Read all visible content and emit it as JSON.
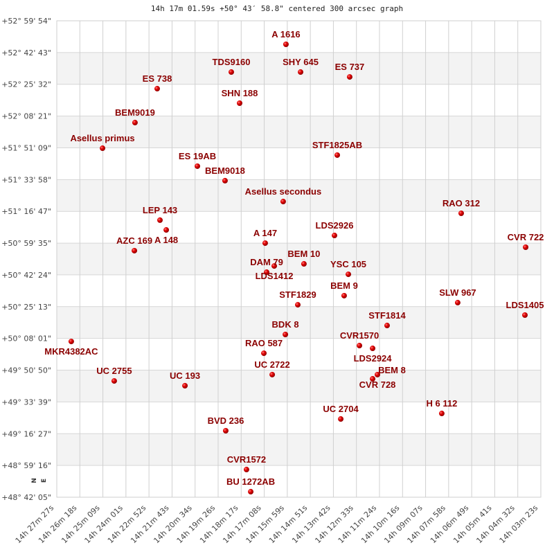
{
  "title": "14h 17m 01.59s +50° 43′ 58.8\" centered 300 arcsec graph",
  "chart_data": {
    "type": "scatter",
    "title": "14h 17m 01.59s +50° 43′ 58.8\" centered 300 arcsec graph",
    "xlabel": "",
    "ylabel": "",
    "x_unit": "RA (hours, decreasing to the right)",
    "xlim": [
      14.4575,
      14.0564
    ],
    "ylim": [
      48.7014,
      52.9983
    ],
    "x_ticks": [
      "14h 27m 27s",
      "14h 26m 18s",
      "14h 25m 09s",
      "14h 24m 01s",
      "14h 22m 52s",
      "14h 21m 43s",
      "14h 20m 34s",
      "14h 19m 26s",
      "14h 18m 17s",
      "14h 17m 08s",
      "14h 15m 59s",
      "14h 14m 51s",
      "14h 13m 42s",
      "14h 12m 33s",
      "14h 11m 24s",
      "14h 10m 16s",
      "14h 09m 07s",
      "14h 07m 58s",
      "14h 06m 49s",
      "14h 05m 41s",
      "14h 04m 32s",
      "14h 03m 23s"
    ],
    "y_ticks": [
      "+52° 59' 54\"",
      "+52° 42' 43\"",
      "+52° 25' 32\"",
      "+52° 08' 21\"",
      "+51° 51' 09\"",
      "+51° 33' 58\"",
      "+51° 16' 47\"",
      "+50° 59' 35\"",
      "+50° 42' 24\"",
      "+50° 25' 13\"",
      "+50° 08' 01\"",
      "+49° 50' 50\"",
      "+49° 33' 39\"",
      "+49° 16' 27\"",
      "+48° 59' 16\"",
      "+48° 42' 05\""
    ],
    "grid": true,
    "alternating_bands": true,
    "point_color": "#dd0000",
    "label_color": "#8b0000",
    "compass": {
      "north": "N",
      "east": "E"
    },
    "points": [
      {
        "name": "A  1616",
        "ra": 14.2676,
        "dec": 52.786
      },
      {
        "name": "TDS9160",
        "ra": 14.3129,
        "dec": 52.536
      },
      {
        "name": "SHY 645",
        "ra": 14.2555,
        "dec": 52.536
      },
      {
        "name": "ES  737",
        "ra": 14.2148,
        "dec": 52.492
      },
      {
        "name": "ES  738",
        "ra": 14.3743,
        "dec": 52.386
      },
      {
        "name": "SHN 188",
        "ra": 14.306,
        "dec": 52.255
      },
      {
        "name": "BEM9019",
        "ra": 14.3927,
        "dec": 52.08
      },
      {
        "name": "Asellus primus",
        "ra": 14.4196,
        "dec": 51.849
      },
      {
        "name": "STF1825AB",
        "ra": 14.2251,
        "dec": 51.787
      },
      {
        "name": "ES   19AB",
        "ra": 14.341,
        "dec": 51.687
      },
      {
        "name": "BEM9018",
        "ra": 14.3181,
        "dec": 51.556
      },
      {
        "name": "Asellus secondus",
        "ra": 14.2699,
        "dec": 51.368
      },
      {
        "name": "RAO 312",
        "ra": 14.1224,
        "dec": 51.262
      },
      {
        "name": "LEP 143",
        "ra": 14.372,
        "dec": 51.2
      },
      {
        "name": "A   148",
        "ra": 14.3668,
        "dec": 51.112
      },
      {
        "name": "LDS2926",
        "ra": 14.2274,
        "dec": 51.062
      },
      {
        "name": "A   147",
        "ra": 14.2848,
        "dec": 50.993
      },
      {
        "name": "CVR 722",
        "ra": 14.069,
        "dec": 50.956
      },
      {
        "name": "AZC 169",
        "ra": 14.3932,
        "dec": 50.925
      },
      {
        "name": "BEM  10",
        "ra": 14.2527,
        "dec": 50.806
      },
      {
        "name": "LDS1412",
        "ra": 14.2773,
        "dec": 50.787
      },
      {
        "name": "DAM  79",
        "ra": 14.2836,
        "dec": 50.731
      },
      {
        "name": "YSC 105",
        "ra": 14.2159,
        "dec": 50.712
      },
      {
        "name": "BEM   9",
        "ra": 14.2194,
        "dec": 50.519
      },
      {
        "name": "SLW 967",
        "ra": 14.1253,
        "dec": 50.456
      },
      {
        "name": "STF1829",
        "ra": 14.2578,
        "dec": 50.437
      },
      {
        "name": "LDS1405",
        "ra": 14.0696,
        "dec": 50.344
      },
      {
        "name": "STF1814",
        "ra": 14.1838,
        "dec": 50.25
      },
      {
        "name": "BDK   8",
        "ra": 14.2681,
        "dec": 50.169
      },
      {
        "name": "MKR4382AC",
        "ra": 14.4455,
        "dec": 50.106
      },
      {
        "name": "CVR1570",
        "ra": 14.2067,
        "dec": 50.069
      },
      {
        "name": "LDS2924",
        "ra": 14.1958,
        "dec": 50.044
      },
      {
        "name": "RAO 587",
        "ra": 14.2859,
        "dec": 50.0
      },
      {
        "name": "CVR 728",
        "ra": 14.1918,
        "dec": 49.807
      },
      {
        "name": "BEM   8",
        "ra": 14.1958,
        "dec": 49.769
      },
      {
        "name": "UC 2722",
        "ra": 14.279,
        "dec": 49.807
      },
      {
        "name": "UC 2755",
        "ra": 14.4099,
        "dec": 49.75
      },
      {
        "name": "UC  193",
        "ra": 14.3513,
        "dec": 49.707
      },
      {
        "name": "H 6 112",
        "ra": 14.1385,
        "dec": 49.457
      },
      {
        "name": "UC 2704",
        "ra": 14.2222,
        "dec": 49.407
      },
      {
        "name": "BVD 236",
        "ra": 14.3175,
        "dec": 49.301
      },
      {
        "name": "CVR1572",
        "ra": 14.3003,
        "dec": 48.951
      },
      {
        "name": "BU 1272AB",
        "ra": 14.2968,
        "dec": 48.751
      }
    ]
  }
}
